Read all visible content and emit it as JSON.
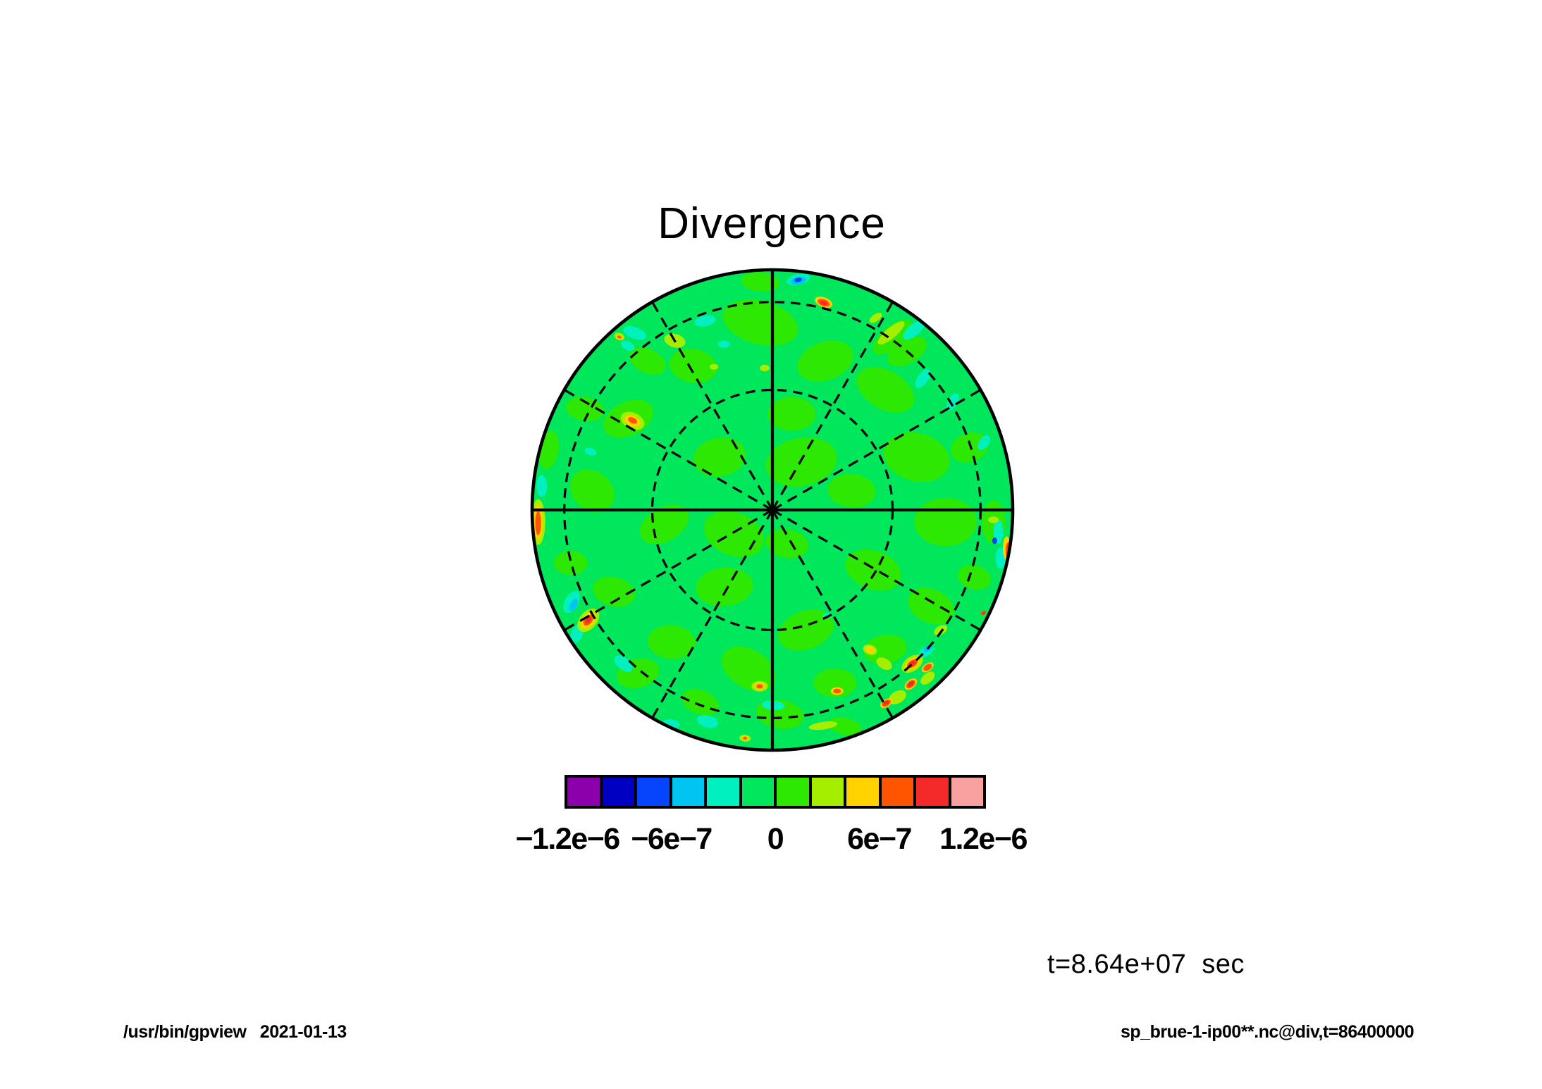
{
  "page": {
    "background": "#FFFFFF"
  },
  "title": "Divergence",
  "time_label": "t=8.64e+07  sec",
  "footer": {
    "left": "/usr/bin/gpview   2021-01-13",
    "right": "sp_brue-1-ip00**.nc@div,t=86400000"
  },
  "chart_data": {
    "type": "heatmap",
    "subtype": "polar-orthographic-tone-map",
    "title": "Divergence",
    "variable": "div",
    "time_seconds": 86400000,
    "time_annotation": "t=8.64e+07  sec",
    "projection": {
      "view": "pole-centered orthographic hemisphere",
      "latitude_circles_deg": [
        60,
        30
      ],
      "latitude_circle_radius_frac": [
        0.5,
        0.866
      ],
      "meridians_every_deg": 30
    },
    "grid": {
      "dashed_circle_fracs": [
        0.5,
        0.866
      ],
      "dashed_radii_deg": [
        30,
        60,
        120,
        150,
        210,
        240,
        300,
        330
      ],
      "solid_radii_deg": [
        0,
        90,
        180,
        270
      ],
      "line_color": "#000000"
    },
    "colorbar": {
      "min": -1.2e-06,
      "max": 1.2e-06,
      "levels": [
        -1.2e-06,
        -1e-06,
        -8e-07,
        -6e-07,
        -4e-07,
        -2e-07,
        0,
        2e-07,
        4e-07,
        6e-07,
        8e-07,
        1e-06,
        1.2e-06
      ],
      "colors": [
        "#8B00AB",
        "#0000C3",
        "#0744FD",
        "#00C4F2",
        "#00F0C0",
        "#00E75C",
        "#2DE802",
        "#A6EE00",
        "#FFD200",
        "#FF5500",
        "#F42A2A",
        "#F9A0A0"
      ],
      "tick_values": [
        -1.2e-06,
        -6e-07,
        0,
        6e-07,
        1.2e-06
      ],
      "tick_labels": [
        "−1.2e−6",
        "−6e−7",
        "0",
        "6e−7",
        "1.2e−6"
      ]
    },
    "field": {
      "description": "Divergence field near zero almost everywhere (level -2e-7..0), with small positive/negative anomaly blobs concentrated toward the disk rim.",
      "background_color_index": 5,
      "blob_format": [
        "u_frac",
        "v_frac",
        "rx_frac",
        "ry_frac",
        "rot_deg",
        "color_index"
      ],
      "blobs": [
        [
          -0.05,
          -0.78,
          0.16,
          0.09,
          15,
          6
        ],
        [
          0.22,
          -0.62,
          0.12,
          0.08,
          -20,
          6
        ],
        [
          -0.33,
          -0.6,
          0.1,
          0.07,
          10,
          6
        ],
        [
          0.47,
          -0.5,
          0.13,
          0.08,
          30,
          6
        ],
        [
          -0.6,
          -0.38,
          0.11,
          0.07,
          -25,
          6
        ],
        [
          0.08,
          -0.4,
          0.1,
          0.07,
          0,
          6
        ],
        [
          0.6,
          -0.22,
          0.14,
          0.1,
          15,
          6
        ],
        [
          -0.22,
          -0.22,
          0.11,
          0.08,
          -10,
          6
        ],
        [
          0.33,
          -0.08,
          0.1,
          0.07,
          5,
          6
        ],
        [
          -0.75,
          -0.08,
          0.1,
          0.08,
          40,
          6
        ],
        [
          0.72,
          0.05,
          0.13,
          0.1,
          0,
          6
        ],
        [
          -0.45,
          0.06,
          0.11,
          0.07,
          -30,
          6
        ],
        [
          0.06,
          0.14,
          0.09,
          0.06,
          10,
          6
        ],
        [
          0.42,
          0.25,
          0.12,
          0.08,
          20,
          6
        ],
        [
          -0.2,
          0.32,
          0.12,
          0.08,
          -5,
          6
        ],
        [
          0.66,
          0.4,
          0.1,
          0.07,
          25,
          6
        ],
        [
          -0.66,
          0.34,
          0.09,
          0.06,
          15,
          6
        ],
        [
          0.14,
          0.5,
          0.12,
          0.08,
          -20,
          6
        ],
        [
          -0.42,
          0.55,
          0.1,
          0.07,
          5,
          6
        ],
        [
          0.47,
          0.58,
          0.09,
          0.06,
          -10,
          6
        ],
        [
          -0.1,
          0.66,
          0.12,
          0.08,
          30,
          6
        ],
        [
          0.26,
          0.72,
          0.09,
          0.06,
          0,
          6
        ],
        [
          -0.56,
          0.68,
          0.09,
          0.06,
          -15,
          6
        ],
        [
          0.03,
          0.85,
          0.1,
          0.06,
          10,
          6
        ],
        [
          -0.3,
          0.8,
          0.08,
          0.05,
          20,
          6
        ],
        [
          0.56,
          -0.66,
          0.09,
          0.05,
          -30,
          6
        ],
        [
          -0.78,
          -0.42,
          0.08,
          0.05,
          10,
          6
        ],
        [
          0.82,
          -0.26,
          0.08,
          0.06,
          -20,
          6
        ],
        [
          -0.84,
          0.22,
          0.07,
          0.05,
          0,
          6
        ],
        [
          0.84,
          0.28,
          0.07,
          0.05,
          15,
          6
        ],
        [
          0.12,
          -0.2,
          0.15,
          0.1,
          -12,
          6
        ],
        [
          -0.16,
          0.1,
          0.13,
          0.09,
          22,
          6
        ],
        [
          0.5,
          -0.72,
          0.1,
          0.045,
          -40,
          6
        ],
        [
          -0.05,
          -0.95,
          0.08,
          0.04,
          5,
          6
        ],
        [
          0.3,
          0.9,
          0.07,
          0.035,
          12,
          6
        ],
        [
          -0.52,
          -0.62,
          0.08,
          0.05,
          25,
          6
        ],
        [
          0.92,
          0.05,
          0.05,
          0.09,
          0,
          6
        ],
        [
          -0.93,
          -0.25,
          0.04,
          0.08,
          10,
          6
        ],
        [
          -0.573,
          -0.737,
          0.05,
          0.024,
          20,
          4
        ],
        [
          -0.281,
          -0.787,
          0.045,
          0.022,
          -10,
          4
        ],
        [
          -0.202,
          -0.69,
          0.025,
          0.015,
          0,
          4
        ],
        [
          -0.602,
          -0.684,
          0.03,
          0.018,
          30,
          4
        ],
        [
          0.588,
          -0.749,
          0.055,
          0.024,
          -40,
          4
        ],
        [
          0.626,
          -0.547,
          0.045,
          0.022,
          -55,
          4
        ],
        [
          0.108,
          -0.96,
          0.05,
          0.022,
          -12,
          4
        ],
        [
          -0.836,
          0.383,
          0.05,
          0.028,
          -60,
          4
        ],
        [
          -0.813,
          0.515,
          0.04,
          0.024,
          -70,
          4
        ],
        [
          -0.62,
          0.64,
          0.045,
          0.025,
          40,
          4
        ],
        [
          -0.27,
          0.88,
          0.045,
          0.025,
          15,
          4
        ],
        [
          0.64,
          0.588,
          0.035,
          0.02,
          -35,
          4
        ],
        [
          0.003,
          0.813,
          0.048,
          0.02,
          5,
          4
        ],
        [
          -0.757,
          -0.243,
          0.025,
          0.015,
          20,
          4
        ],
        [
          0.88,
          -0.28,
          0.035,
          0.02,
          -55,
          4
        ],
        [
          -0.96,
          -0.1,
          0.022,
          0.045,
          0,
          4
        ],
        [
          0.23,
          0.44,
          0.02,
          0.012,
          0,
          4
        ],
        [
          -0.42,
          0.89,
          0.035,
          0.018,
          10,
          4
        ],
        [
          0.94,
          0.09,
          0.02,
          0.05,
          0,
          4
        ],
        [
          0.95,
          0.2,
          0.022,
          0.045,
          0,
          4
        ],
        [
          0.75,
          -0.45,
          0.04,
          0.02,
          -60,
          4
        ],
        [
          0.108,
          -0.955,
          0.032,
          0.016,
          -12,
          3
        ],
        [
          0.985,
          0.21,
          0.013,
          0.03,
          0,
          3
        ],
        [
          -0.828,
          0.395,
          0.028,
          0.014,
          -60,
          3
        ],
        [
          0.648,
          0.575,
          0.022,
          0.012,
          -35,
          3
        ],
        [
          0.107,
          -0.958,
          0.016,
          0.009,
          -12,
          2
        ],
        [
          0.925,
          0.128,
          0.01,
          0.014,
          0,
          2
        ],
        [
          -0.406,
          -0.705,
          0.045,
          0.028,
          15,
          7
        ],
        [
          -0.243,
          -0.596,
          0.018,
          0.012,
          0,
          7
        ],
        [
          -0.032,
          -0.591,
          0.02,
          0.014,
          0,
          7
        ],
        [
          0.494,
          -0.737,
          0.07,
          0.022,
          -40,
          7
        ],
        [
          0.43,
          -0.8,
          0.03,
          0.015,
          -35,
          7
        ],
        [
          -0.637,
          -0.722,
          0.022,
          0.015,
          20,
          7
        ],
        [
          -0.582,
          -0.371,
          0.052,
          0.034,
          25,
          7
        ],
        [
          -0.766,
          0.459,
          0.056,
          0.036,
          -50,
          7
        ],
        [
          -0.975,
          0.05,
          0.03,
          0.095,
          0,
          7
        ],
        [
          0.465,
          0.64,
          0.035,
          0.022,
          30,
          7
        ],
        [
          0.406,
          0.582,
          0.03,
          0.02,
          20,
          7
        ],
        [
          0.211,
          0.898,
          0.06,
          0.016,
          -8,
          7
        ],
        [
          -0.053,
          0.734,
          0.034,
          0.022,
          0,
          7
        ],
        [
          0.7,
          0.5,
          0.03,
          0.018,
          -30,
          7
        ],
        [
          -0.114,
          0.95,
          0.024,
          0.014,
          5,
          7
        ],
        [
          0.582,
          0.64,
          0.05,
          0.03,
          -35,
          7
        ],
        [
          0.52,
          0.78,
          0.04,
          0.025,
          -30,
          7
        ],
        [
          0.646,
          0.7,
          0.035,
          0.02,
          -40,
          7
        ],
        [
          0.92,
          0.041,
          0.022,
          0.014,
          0,
          7
        ],
        [
          -0.975,
          0.05,
          0.02,
          0.07,
          0,
          8
        ],
        [
          -0.582,
          -0.371,
          0.034,
          0.021,
          25,
          8
        ],
        [
          -0.637,
          -0.72,
          0.014,
          0.009,
          20,
          8
        ],
        [
          0.213,
          -0.865,
          0.038,
          0.02,
          20,
          8
        ],
        [
          -0.766,
          0.459,
          0.038,
          0.024,
          -50,
          8
        ],
        [
          0.582,
          0.64,
          0.034,
          0.02,
          -35,
          8
        ],
        [
          0.576,
          0.725,
          0.03,
          0.018,
          -40,
          8
        ],
        [
          0.474,
          0.804,
          0.028,
          0.016,
          -30,
          8
        ],
        [
          0.269,
          0.754,
          0.026,
          0.016,
          0,
          8
        ],
        [
          0.406,
          0.582,
          0.02,
          0.013,
          20,
          8
        ],
        [
          0.646,
          0.655,
          0.028,
          0.016,
          -35,
          8
        ],
        [
          -0.053,
          0.734,
          0.022,
          0.014,
          0,
          8
        ],
        [
          -0.114,
          0.95,
          0.015,
          0.009,
          5,
          8
        ],
        [
          0.975,
          0.16,
          0.016,
          0.05,
          0,
          8
        ],
        [
          0.213,
          -0.863,
          0.026,
          0.014,
          20,
          9
        ],
        [
          -0.582,
          -0.373,
          0.02,
          0.012,
          25,
          9
        ],
        [
          -0.637,
          -0.72,
          0.009,
          0.006,
          20,
          9
        ],
        [
          -0.975,
          0.055,
          0.012,
          0.05,
          0,
          9
        ],
        [
          -0.766,
          0.459,
          0.026,
          0.016,
          -50,
          9
        ],
        [
          0.582,
          0.64,
          0.025,
          0.014,
          -35,
          9
        ],
        [
          0.576,
          0.725,
          0.022,
          0.013,
          -40,
          9
        ],
        [
          0.474,
          0.804,
          0.02,
          0.012,
          -30,
          9
        ],
        [
          0.646,
          0.655,
          0.02,
          0.012,
          -35,
          9
        ],
        [
          0.269,
          0.754,
          0.016,
          0.01,
          0,
          9
        ],
        [
          -0.053,
          0.734,
          0.014,
          0.009,
          0,
          9
        ],
        [
          0.98,
          0.17,
          0.01,
          0.035,
          0,
          9
        ],
        [
          -0.114,
          0.95,
          0.009,
          0.006,
          5,
          9
        ],
        [
          0.877,
          0.428,
          0.012,
          0.008,
          -40,
          9
        ],
        [
          0.213,
          -0.862,
          0.015,
          0.008,
          20,
          10
        ],
        [
          -0.766,
          0.458,
          0.016,
          0.009,
          -50,
          10
        ],
        [
          0.582,
          0.639,
          0.016,
          0.008,
          -35,
          10
        ],
        [
          0.576,
          0.724,
          0.015,
          0.008,
          -40,
          10
        ],
        [
          0.474,
          0.803,
          0.013,
          0.007,
          -30,
          10
        ],
        [
          0.985,
          0.16,
          0.008,
          0.024,
          0,
          10
        ],
        [
          0.88,
          0.43,
          0.007,
          0.005,
          -40,
          10
        ]
      ]
    }
  }
}
